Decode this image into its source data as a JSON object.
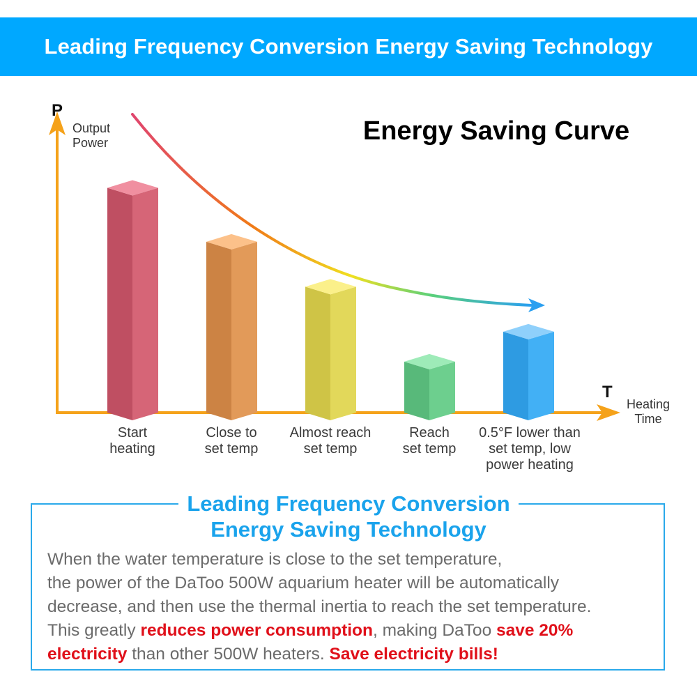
{
  "banner": {
    "title": "Leading Frequency Conversion Energy Saving Technology"
  },
  "colors": {
    "banner_bg": "#00a8ff",
    "axis": "#f5a21a",
    "heading_blue": "#1aa3ec",
    "highlight_red": "#e0101a",
    "body_gray": "#6b6b6b"
  },
  "chart_data": {
    "type": "bar",
    "title": "Energy Saving Curve",
    "ylabel_symbol": "P",
    "ylabel": "Output Power",
    "xlabel_symbol": "T",
    "xlabel": "Heating Time",
    "ylim": [
      0,
      100
    ],
    "grid": false,
    "categories": [
      "Start heating",
      "Close to set temp",
      "Almost reach set temp",
      "Reach set temp",
      "0.5°F lower than set temp, low power heating"
    ],
    "category_lines": [
      [
        "Start",
        "heating"
      ],
      [
        "Close to",
        "set temp"
      ],
      [
        "Almost reach",
        "set temp"
      ],
      [
        "Reach",
        "set temp"
      ],
      [
        "0.5°F lower than",
        "set temp, low",
        "power heating"
      ]
    ],
    "values": [
      75,
      57,
      42,
      17,
      27
    ],
    "bar_colors": [
      {
        "front": "#d66577",
        "side": "#bf4f62",
        "top": "#f08fa0"
      },
      {
        "front": "#e29a59",
        "side": "#cc8344",
        "top": "#fcc18a"
      },
      {
        "front": "#e2d85a",
        "side": "#cfc446",
        "top": "#fbf08a"
      },
      {
        "front": "#6dcf8e",
        "side": "#58b97a",
        "top": "#9eebb8"
      },
      {
        "front": "#42b0f5",
        "side": "#2e9be2",
        "top": "#8fd0fb"
      }
    ],
    "trend_curve": {
      "description": "decreasing energy curve with arrow",
      "gradient": [
        "#e0456e",
        "#f07a18",
        "#f0e020",
        "#5ad07a",
        "#2a9ff0"
      ]
    }
  },
  "info": {
    "heading_line1": "Leading Frequency Conversion",
    "heading_line2": "Energy Saving Technology",
    "line1": "When the water temperature is close to the set temperature,",
    "line2": "the power of the DaToo 500W aquarium heater will be automatically",
    "line3": "decrease, and then use the thermal inertia to reach the set temperature.",
    "line4_a": "This greatly ",
    "line4_b": "reduces power consumption",
    "line4_c": ", making DaToo ",
    "line4_d": "save 20%",
    "line5_a": "electricity",
    "line5_b": " than other 500W heaters. ",
    "line5_c": "Save electricity bills!"
  }
}
